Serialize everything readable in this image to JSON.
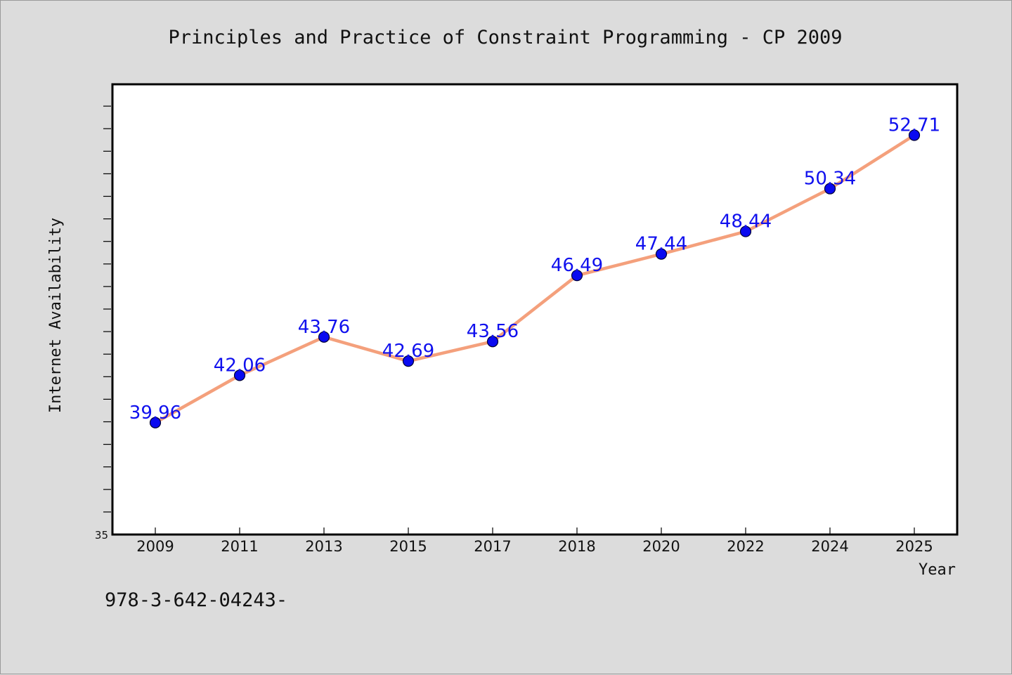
{
  "chart_data": {
    "type": "line",
    "title": "Principles and Practice of Constraint Programming - CP 2009",
    "xlabel": "Year",
    "ylabel": "Internet Availability",
    "categories": [
      "2009",
      "2011",
      "2013",
      "2015",
      "2017",
      "2018",
      "2020",
      "2022",
      "2024",
      "2025"
    ],
    "series": [
      {
        "values": [
          39.96,
          42.06,
          43.76,
          42.69,
          43.56,
          46.49,
          47.44,
          48.44,
          50.34,
          52.71
        ],
        "value_labels": [
          "39.96",
          "42.06",
          "43.76",
          "42.69",
          "43.56",
          "46.49",
          "47.44",
          "48.44",
          "50.34",
          "52.71"
        ]
      }
    ],
    "ylim": [
      35,
      55
    ],
    "y_tick_labels": [
      "35"
    ],
    "grid": false,
    "colors": {
      "line": "#f4a07c",
      "marker_fill": "#0a0af0",
      "marker_stroke": "#000033",
      "data_label": "#1010ee",
      "plot_background": "#ffffff",
      "page_background": "#dcdcdc"
    }
  },
  "footnote": "978-3-642-04243-"
}
